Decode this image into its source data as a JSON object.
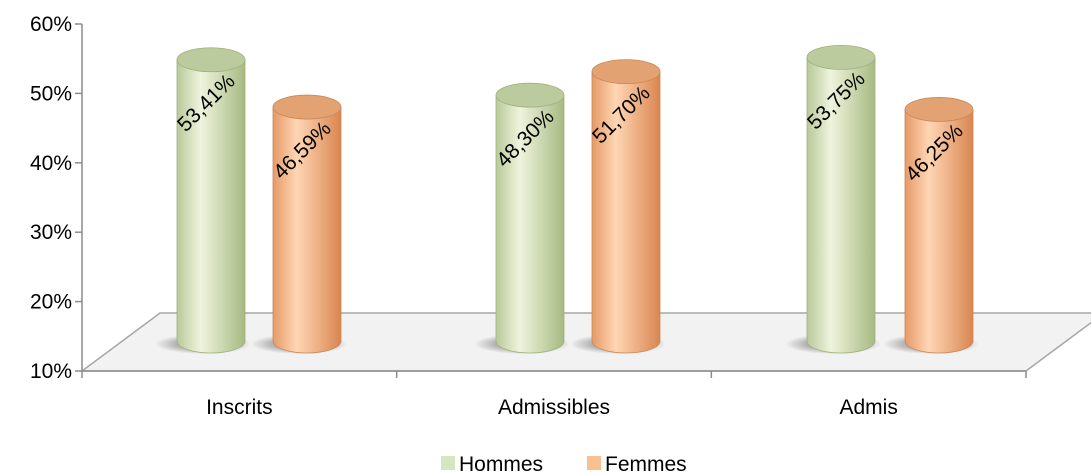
{
  "chart_data": {
    "type": "bar",
    "categories": [
      "Inscrits",
      "Admissibles",
      "Admis"
    ],
    "series": [
      {
        "name": "Hommes",
        "values": [
          53.41,
          48.3,
          53.75
        ],
        "labels": [
          "53,41%",
          "48,30%",
          "53,75%"
        ],
        "color": "#d7e4bd"
      },
      {
        "name": "Femmes",
        "values": [
          46.59,
          51.7,
          46.25
        ],
        "labels": [
          "46,59%",
          "51,70%",
          "46,25%"
        ],
        "color": "#fac090"
      }
    ],
    "ylim": [
      10,
      60
    ],
    "yticks": [
      {
        "value": 10,
        "label": "10%"
      },
      {
        "value": 20,
        "label": "20%"
      },
      {
        "value": 30,
        "label": "30%"
      },
      {
        "value": 40,
        "label": "40%"
      },
      {
        "value": 50,
        "label": "50%"
      },
      {
        "value": 60,
        "label": "60%"
      }
    ],
    "legend_position": "bottom",
    "style": "3d-cylinder",
    "grid": false
  }
}
